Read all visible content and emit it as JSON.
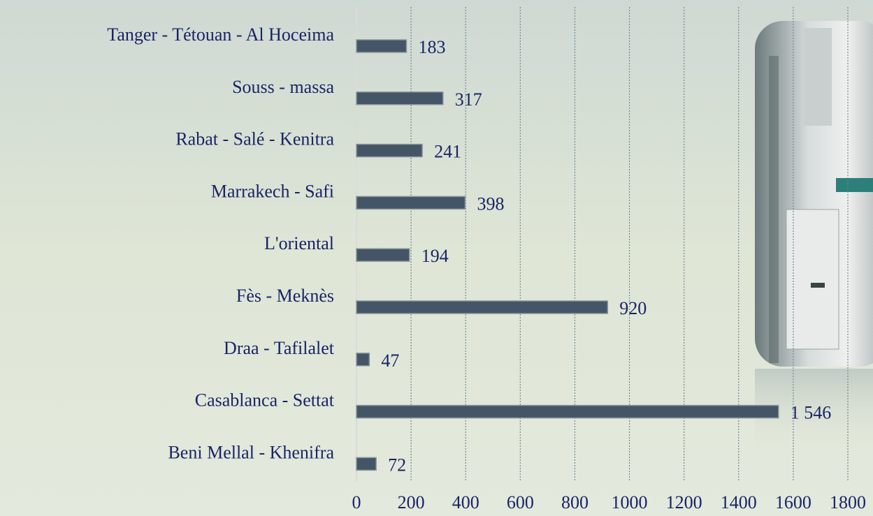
{
  "chart_data": {
    "type": "hbar",
    "categories": [
      "Tanger - Tétouan - Al Hoceima",
      "Souss - massa",
      "Rabat - Salé - Kenitra",
      "Marrakech - Safi",
      "L'oriental",
      "Fès - Meknès",
      "Draa - Tafilalet",
      "Casablanca - Settat",
      "Beni Mellal - Khenifra"
    ],
    "values": [
      183,
      317,
      241,
      398,
      194,
      920,
      47,
      1546,
      72
    ],
    "value_labels": [
      "183",
      "317",
      "241",
      "398",
      "194",
      "920",
      "47",
      "1 546",
      "72"
    ],
    "color": "#435566",
    "xlim": [
      0,
      1800
    ],
    "xticks": [
      0,
      200,
      400,
      600,
      800,
      1000,
      1200,
      1400,
      1600,
      1800
    ],
    "grid": true
  }
}
